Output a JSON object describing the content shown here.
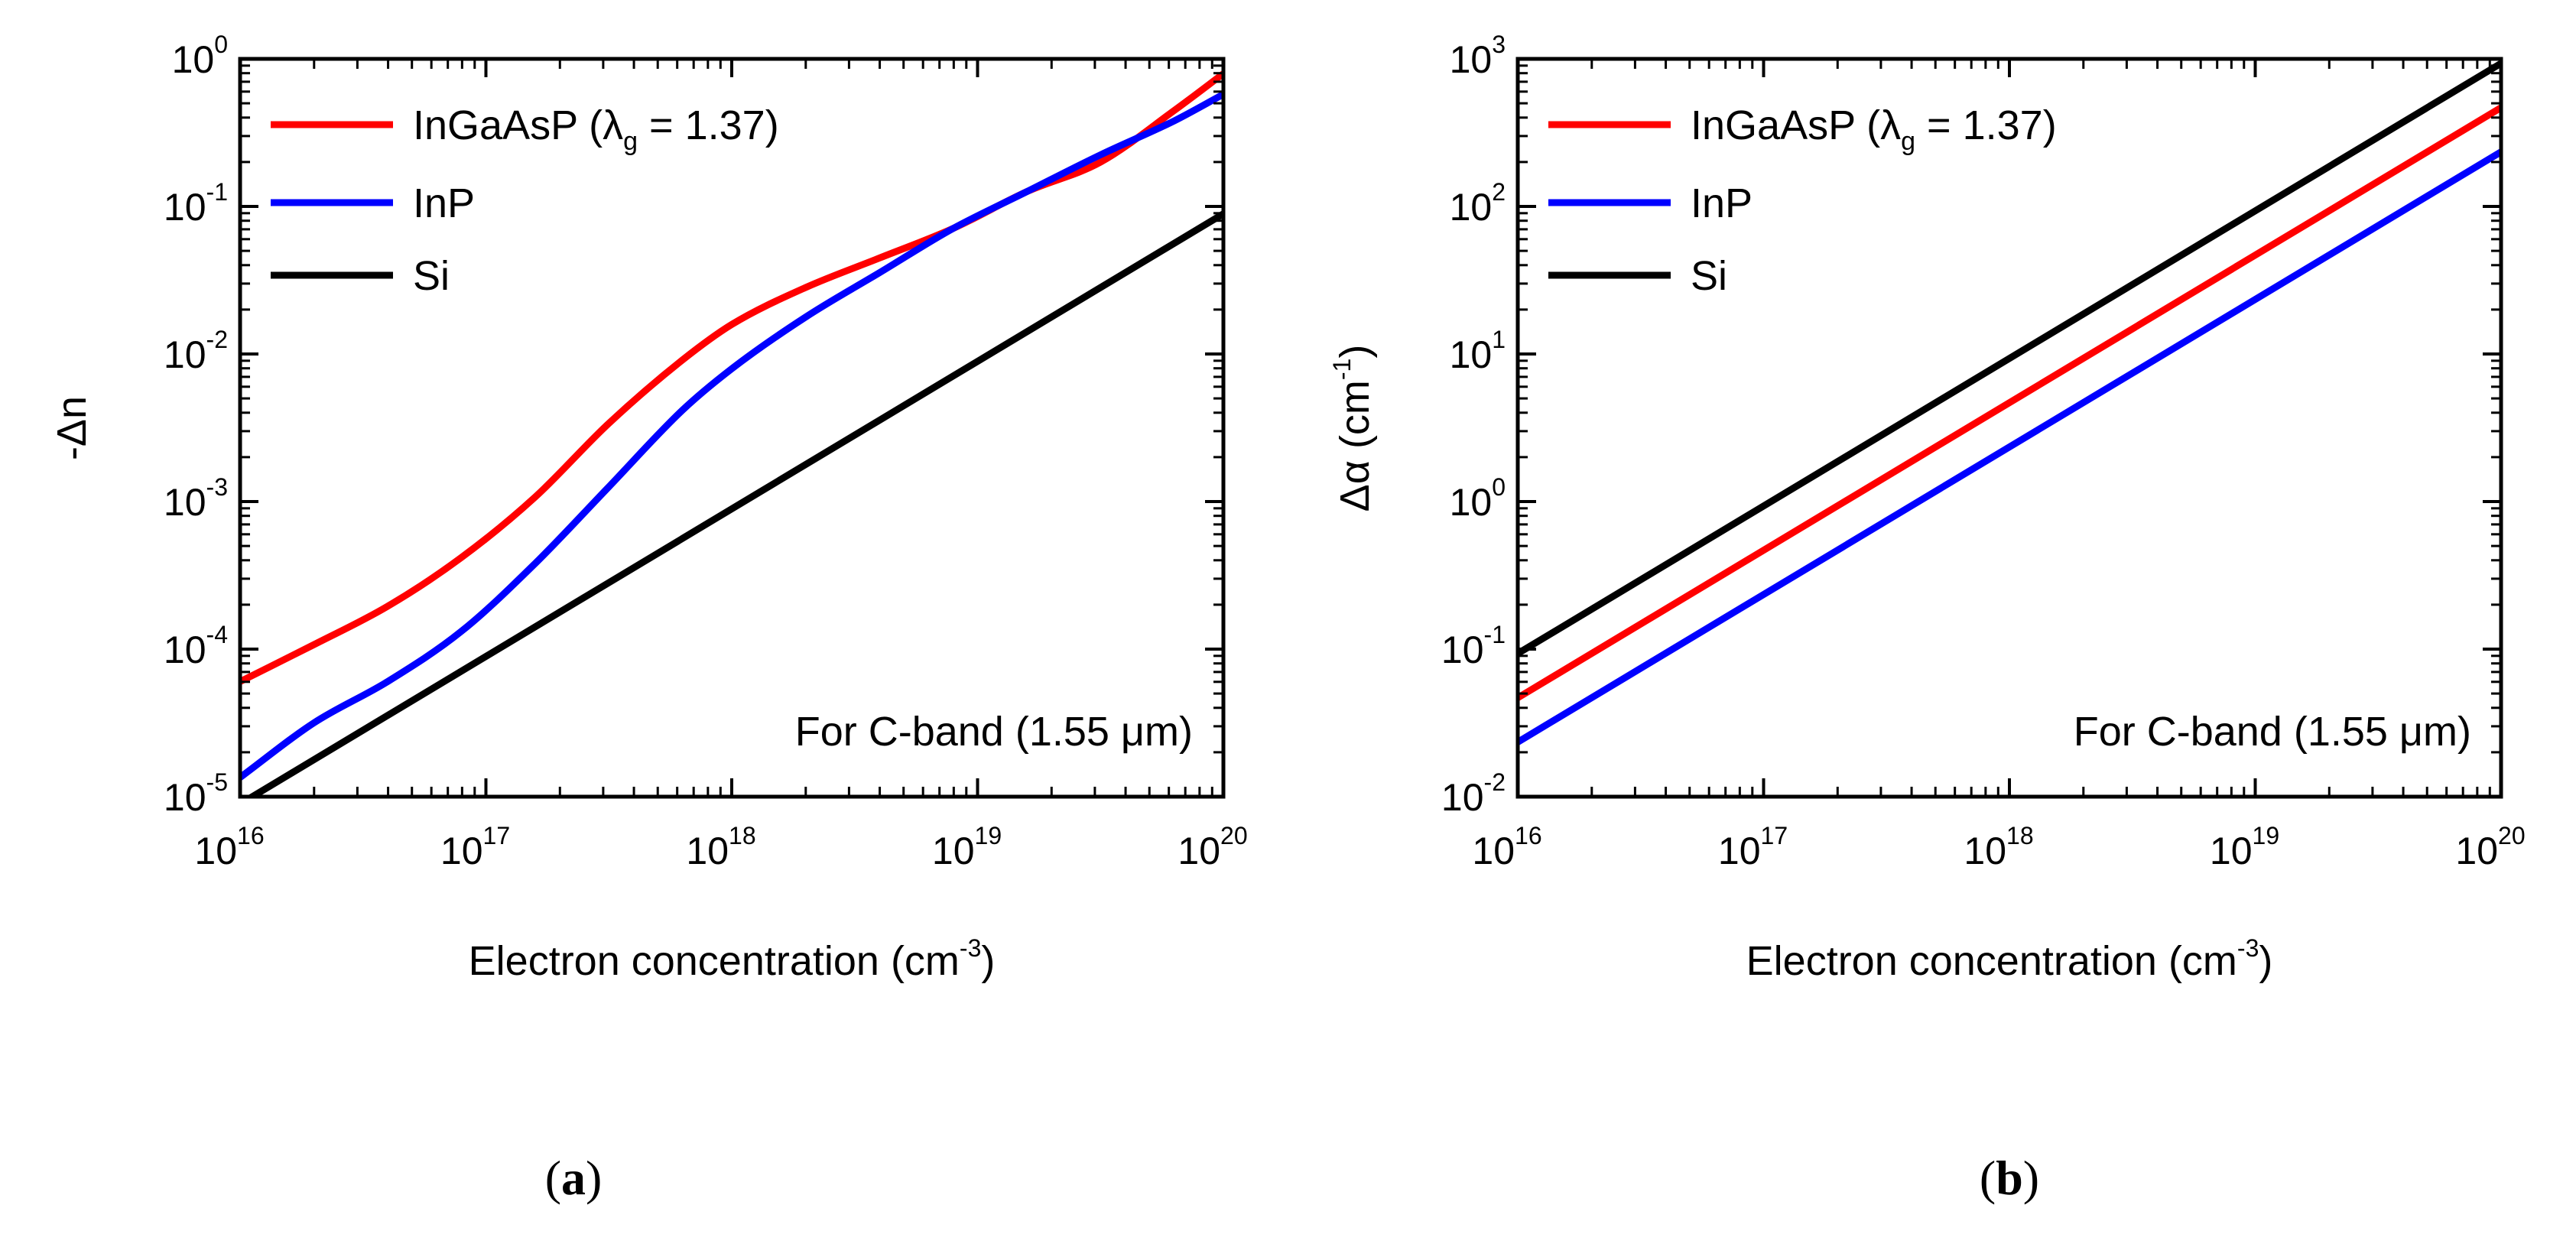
{
  "chart_data": [
    {
      "type": "line",
      "panel": "a",
      "caption": "a",
      "xlabel": "Electron concentration (cm",
      "xlabel_sup": "-3",
      "xlabel_end": ")",
      "ylabel": "-Δn",
      "xscale": "log",
      "yscale": "log",
      "xlim_exp": [
        16,
        20
      ],
      "ylim_exp": [
        -5,
        0
      ],
      "x_ticks": [
        {
          "base": "10",
          "exp": "16"
        },
        {
          "base": "10",
          "exp": "17"
        },
        {
          "base": "10",
          "exp": "18"
        },
        {
          "base": "10",
          "exp": "19"
        },
        {
          "base": "10",
          "exp": "20"
        }
      ],
      "y_ticks": [
        {
          "base": "10",
          "exp": "0"
        },
        {
          "base": "10",
          "exp": "-1"
        },
        {
          "base": "10",
          "exp": "-2"
        },
        {
          "base": "10",
          "exp": "-3"
        },
        {
          "base": "10",
          "exp": "-4"
        },
        {
          "base": "10",
          "exp": "-5"
        }
      ],
      "annotation": "For C-band (1.55 μm)",
      "legend_position": "top-left",
      "series": [
        {
          "name": "InGaAsP",
          "legend_label": "InGaAsP (λ",
          "legend_sub": "g",
          "legend_end": " = 1.37)",
          "color": "#ff0000",
          "x_exp": [
            16,
            16.3,
            16.6,
            16.9,
            17.2,
            17.5,
            17.8,
            18.0,
            18.3,
            18.6,
            18.9,
            19.2,
            19.5,
            19.8,
            20
          ],
          "y_exp": [
            -4.22,
            -3.97,
            -3.71,
            -3.38,
            -2.97,
            -2.47,
            -2.04,
            -1.8,
            -1.55,
            -1.35,
            -1.15,
            -0.9,
            -0.7,
            -0.35,
            -0.1
          ]
        },
        {
          "name": "InP",
          "legend_label": "InP",
          "legend_sub": "",
          "legend_end": "",
          "color": "#0000ff",
          "x_exp": [
            16,
            16.3,
            16.6,
            16.9,
            17.2,
            17.5,
            17.8,
            18.0,
            18.3,
            18.6,
            18.9,
            19.2,
            19.5,
            19.8,
            20
          ],
          "y_exp": [
            -4.87,
            -4.5,
            -4.22,
            -3.88,
            -3.42,
            -2.9,
            -2.38,
            -2.1,
            -1.75,
            -1.45,
            -1.15,
            -0.9,
            -0.65,
            -0.42,
            -0.24
          ]
        },
        {
          "name": "Si",
          "legend_label": "Si",
          "legend_sub": "",
          "legend_end": "",
          "color": "#000000",
          "x_exp": [
            16,
            20
          ],
          "y_exp": [
            -5.05,
            -1.05
          ]
        }
      ]
    },
    {
      "type": "line",
      "panel": "b",
      "caption": "b",
      "xlabel": "Electron concentration (cm",
      "xlabel_sup": "-3",
      "xlabel_end": ")",
      "ylabel": "Δα (cm",
      "ylabel_sup": "-1",
      "ylabel_end": ")",
      "xscale": "log",
      "yscale": "log",
      "xlim_exp": [
        16,
        20
      ],
      "ylim_exp": [
        -2,
        3
      ],
      "x_ticks": [
        {
          "base": "10",
          "exp": "16"
        },
        {
          "base": "10",
          "exp": "17"
        },
        {
          "base": "10",
          "exp": "18"
        },
        {
          "base": "10",
          "exp": "19"
        },
        {
          "base": "10",
          "exp": "20"
        }
      ],
      "y_ticks": [
        {
          "base": "10",
          "exp": "3"
        },
        {
          "base": "10",
          "exp": "2"
        },
        {
          "base": "10",
          "exp": "1"
        },
        {
          "base": "10",
          "exp": "0"
        },
        {
          "base": "10",
          "exp": "-1"
        },
        {
          "base": "10",
          "exp": "-2"
        }
      ],
      "annotation": "For C-band (1.55 μm)",
      "legend_position": "top-left",
      "series": [
        {
          "name": "InGaAsP",
          "legend_label": "InGaAsP (λ",
          "legend_sub": "g",
          "legend_end": " = 1.37)",
          "color": "#ff0000",
          "x_exp": [
            16,
            20
          ],
          "y_exp": [
            -1.33,
            2.67
          ]
        },
        {
          "name": "InP",
          "legend_label": "InP",
          "legend_sub": "",
          "legend_end": "",
          "color": "#0000ff",
          "x_exp": [
            16,
            20
          ],
          "y_exp": [
            -1.63,
            2.37
          ]
        },
        {
          "name": "Si",
          "legend_label": "Si",
          "legend_sub": "",
          "legend_end": "",
          "color": "#000000",
          "x_exp": [
            16,
            20
          ],
          "y_exp": [
            -1.03,
            2.97
          ]
        }
      ]
    }
  ]
}
